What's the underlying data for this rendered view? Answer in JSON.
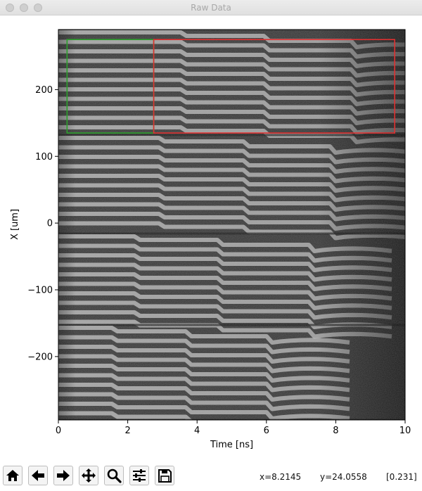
{
  "window": {
    "title": "Raw Data"
  },
  "chart_data": {
    "type": "heatmap",
    "colormap": "gray",
    "xlabel": "Time [ns]",
    "ylabel": "X [um]",
    "xlim": [
      0,
      10
    ],
    "ylim": [
      -295,
      290
    ],
    "xticks": [
      "0",
      "2",
      "4",
      "6",
      "8",
      "10"
    ],
    "xtick_values": [
      0,
      2,
      4,
      6,
      8,
      10
    ],
    "yticks": [
      "200",
      "100",
      "0",
      "−100",
      "−200"
    ],
    "ytick_values": [
      200,
      100,
      0,
      -100,
      -200
    ],
    "rois": [
      {
        "color": "#2ca02c",
        "x": [
          0.25,
          2.75
        ],
        "y": [
          135,
          275
        ]
      },
      {
        "color": "#e03030",
        "x": [
          2.75,
          9.7
        ],
        "y": [
          135,
          275
        ]
      }
    ]
  },
  "toolbar": {
    "buttons": [
      {
        "name": "home-button",
        "icon": "home-icon"
      },
      {
        "name": "back-button",
        "icon": "arrow-left-icon"
      },
      {
        "name": "forward-button",
        "icon": "arrow-right-icon"
      },
      {
        "name": "pan-button",
        "icon": "move-icon"
      },
      {
        "name": "zoom-button",
        "icon": "magnifier-icon"
      },
      {
        "name": "configure-subplots-button",
        "icon": "sliders-icon"
      },
      {
        "name": "save-button",
        "icon": "floppy-disk-icon"
      }
    ]
  },
  "status": {
    "x": "x=8.2145",
    "y": "y=24.0558",
    "value": "[0.231]"
  }
}
